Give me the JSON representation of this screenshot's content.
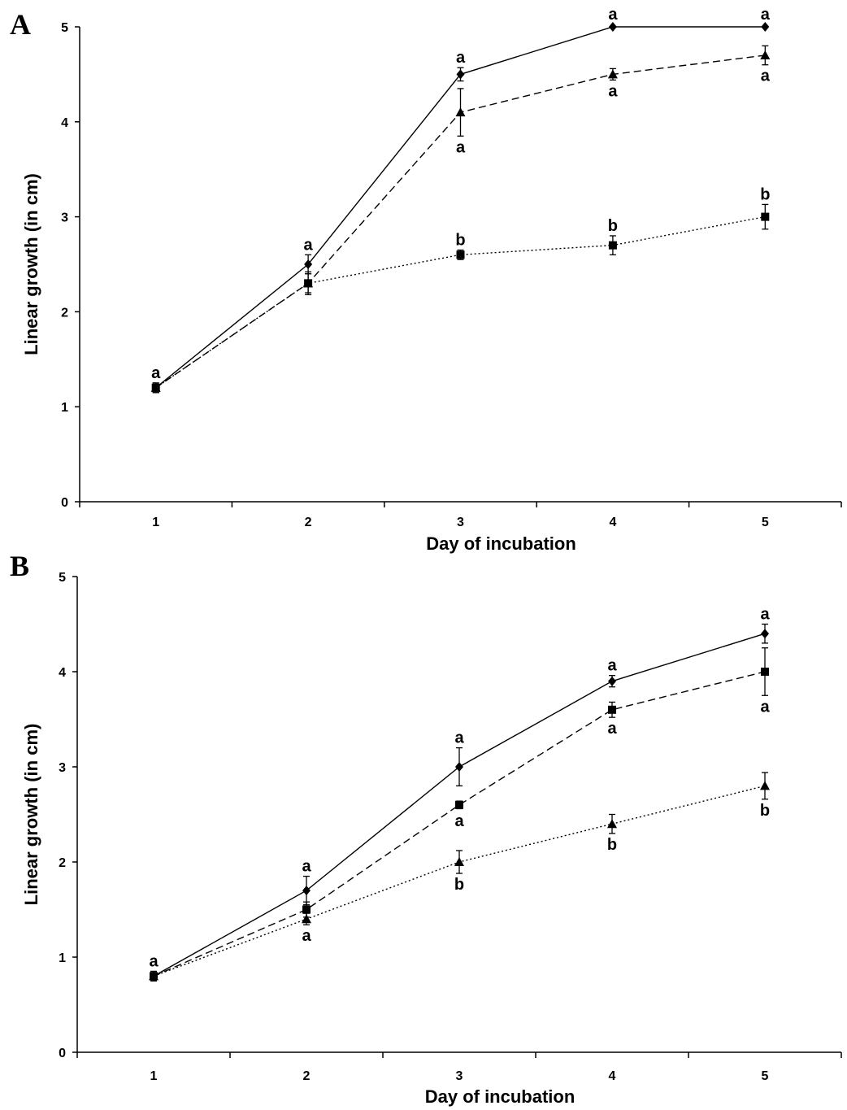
{
  "chart_data": [
    {
      "type": "line",
      "panel_label": "A",
      "xlabel": "Day of incubation",
      "ylabel": "Linear growth (in cm)",
      "x": [
        1,
        2,
        3,
        4,
        5
      ],
      "xlim": [
        0.5,
        5.5
      ],
      "ylim": [
        0,
        5
      ],
      "yticks": [
        0,
        1,
        2,
        3,
        4,
        5
      ],
      "grid": false,
      "series": [
        {
          "marker": "diamond",
          "line_style": "solid",
          "values": [
            1.2,
            2.5,
            4.5,
            5.0,
            5.0
          ],
          "errors": [
            0.05,
            0.1,
            0.07,
            0.0,
            0.0
          ],
          "labels": [
            "a",
            "a",
            "a",
            "a",
            "a"
          ],
          "label_positions": [
            "above",
            "above",
            "above",
            "above",
            "above"
          ]
        },
        {
          "marker": "triangle",
          "line_style": "dashed",
          "values": [
            1.2,
            2.3,
            4.1,
            4.5,
            4.7
          ],
          "errors": [
            0.05,
            0.1,
            0.25,
            0.06,
            0.1
          ],
          "labels": [
            "",
            "",
            "a",
            "a",
            "a"
          ],
          "label_positions": [
            "",
            "",
            "below",
            "below",
            "below"
          ]
        },
        {
          "marker": "square",
          "line_style": "dotted",
          "values": [
            1.2,
            2.3,
            2.6,
            2.7,
            3.0
          ],
          "errors": [
            0.05,
            0.12,
            0.05,
            0.1,
            0.13
          ],
          "labels": [
            "",
            "",
            "b",
            "b",
            "b"
          ],
          "label_positions": [
            "",
            "",
            "above",
            "above",
            "above"
          ]
        }
      ]
    },
    {
      "type": "line",
      "panel_label": "B",
      "xlabel": "Day of incubation",
      "ylabel": "Linear growth (in cm)",
      "x": [
        1,
        2,
        3,
        4,
        5
      ],
      "xlim": [
        0.5,
        5.5
      ],
      "ylim": [
        0,
        5
      ],
      "yticks": [
        0,
        1,
        2,
        3,
        4,
        5
      ],
      "grid": false,
      "series": [
        {
          "marker": "diamond",
          "line_style": "solid",
          "values": [
            0.8,
            1.7,
            3.0,
            3.9,
            4.4
          ],
          "errors": [
            0.05,
            0.15,
            0.2,
            0.06,
            0.1
          ],
          "labels": [
            "a",
            "a",
            "a",
            "a",
            "a"
          ],
          "label_positions": [
            "above",
            "above",
            "above",
            "above",
            "above"
          ]
        },
        {
          "marker": "square",
          "line_style": "dashed",
          "values": [
            0.8,
            1.5,
            2.6,
            3.6,
            4.0
          ],
          "errors": [
            0.05,
            0.08,
            0.04,
            0.08,
            0.25
          ],
          "labels": [
            "",
            "",
            "a",
            "a",
            "a"
          ],
          "label_positions": [
            "",
            "",
            "below",
            "below",
            "below"
          ]
        },
        {
          "marker": "triangle",
          "line_style": "dotted",
          "values": [
            0.8,
            1.4,
            2.0,
            2.4,
            2.8
          ],
          "errors": [
            0.05,
            0.06,
            0.12,
            0.1,
            0.14
          ],
          "labels": [
            "",
            "a",
            "b",
            "b",
            "b"
          ],
          "label_positions": [
            "",
            "below",
            "below",
            "below",
            "below"
          ]
        }
      ]
    }
  ]
}
